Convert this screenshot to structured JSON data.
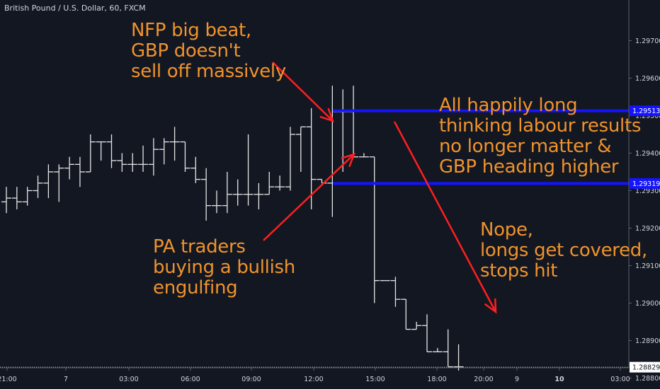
{
  "header": {
    "symbol_title": "British Pound / U.S. Dollar, 60, FXCM"
  },
  "colors": {
    "background": "#131722",
    "bars": "#e6e6e6",
    "levels": "#1414ff",
    "arrows": "#ff1f1f",
    "annotations": "#f0932b",
    "axis_text": "#d1d4dc",
    "axis_line": "#5d606b"
  },
  "annotations": {
    "nfp": "NFP big beat,\nGBP doesn't\nsell off massively",
    "pa": "PA traders\nbuying a bullish\nengulfing",
    "long": "All happily long\nthinking labour results\nno longer matter &\nGBP heading higher",
    "nope": "Nope,\nlongs get covered,\nstops hit"
  },
  "chart_data": {
    "type": "ohlc",
    "symbol": "British Pound / U.S. Dollar",
    "timeframe": "60",
    "source": "FXCM",
    "y_axis": {
      "side": "right",
      "range": [
        1.2876,
        1.2972
      ],
      "ticks": [
        1.297,
        1.296,
        1.295,
        1.294,
        1.293,
        1.292,
        1.291,
        1.29,
        1.289,
        1.288
      ],
      "tick_labels": [
        "1.29700",
        "1.29600",
        "1.29500",
        "1.29400",
        "1.29300",
        "1.29200",
        "1.29100",
        "1.29000",
        "1.28900",
        "1.28800"
      ]
    },
    "x_axis": {
      "labels": [
        "21:00",
        "7",
        "03:00",
        "06:00",
        "09:00",
        "12:00",
        "15:00",
        "18:00",
        "20:00",
        "9",
        "10",
        "03:00"
      ],
      "bold_labels": [
        "10"
      ]
    },
    "levels": [
      {
        "value": 1.29513,
        "label": "1.29513"
      },
      {
        "value": 1.29319,
        "label": "1.29319"
      }
    ],
    "last_price": {
      "value": 1.28829,
      "label": "1.28829"
    },
    "bars": [
      {
        "o": 1.2927,
        "h": 1.2931,
        "l": 1.2924,
        "c": 1.2928
      },
      {
        "o": 1.2928,
        "h": 1.2931,
        "l": 1.2925,
        "c": 1.2927
      },
      {
        "o": 1.2927,
        "h": 1.2931,
        "l": 1.2926,
        "c": 1.293
      },
      {
        "o": 1.293,
        "h": 1.2934,
        "l": 1.2928,
        "c": 1.2932
      },
      {
        "o": 1.2932,
        "h": 1.2937,
        "l": 1.2928,
        "c": 1.2935
      },
      {
        "o": 1.2935,
        "h": 1.2937,
        "l": 1.2927,
        "c": 1.2936
      },
      {
        "o": 1.2936,
        "h": 1.2939,
        "l": 1.2933,
        "c": 1.2937
      },
      {
        "o": 1.2937,
        "h": 1.2939,
        "l": 1.2931,
        "c": 1.2935
      },
      {
        "o": 1.2935,
        "h": 1.2945,
        "l": 1.2935,
        "c": 1.2943
      },
      {
        "o": 1.2943,
        "h": 1.2943,
        "l": 1.2938,
        "c": 1.2943
      },
      {
        "o": 1.2943,
        "h": 1.2945,
        "l": 1.2936,
        "c": 1.2938
      },
      {
        "o": 1.2938,
        "h": 1.294,
        "l": 1.2935,
        "c": 1.2937
      },
      {
        "o": 1.2937,
        "h": 1.294,
        "l": 1.2935,
        "c": 1.2937
      },
      {
        "o": 1.2937,
        "h": 1.2942,
        "l": 1.2935,
        "c": 1.2937
      },
      {
        "o": 1.2937,
        "h": 1.2944,
        "l": 1.2934,
        "c": 1.2941
      },
      {
        "o": 1.2941,
        "h": 1.2944,
        "l": 1.2937,
        "c": 1.2943
      },
      {
        "o": 1.2943,
        "h": 1.2947,
        "l": 1.2938,
        "c": 1.2943
      },
      {
        "o": 1.2943,
        "h": 1.2943,
        "l": 1.2935,
        "c": 1.2936
      },
      {
        "o": 1.2936,
        "h": 1.2939,
        "l": 1.2932,
        "c": 1.2933
      },
      {
        "o": 1.2933,
        "h": 1.2936,
        "l": 1.2922,
        "c": 1.2926
      },
      {
        "o": 1.2926,
        "h": 1.293,
        "l": 1.2924,
        "c": 1.2926
      },
      {
        "o": 1.2926,
        "h": 1.2935,
        "l": 1.2924,
        "c": 1.2929
      },
      {
        "o": 1.2929,
        "h": 1.2933,
        "l": 1.2926,
        "c": 1.2929
      },
      {
        "o": 1.2929,
        "h": 1.2945,
        "l": 1.2926,
        "c": 1.2929
      },
      {
        "o": 1.2929,
        "h": 1.2932,
        "l": 1.2925,
        "c": 1.2929
      },
      {
        "o": 1.2929,
        "h": 1.2935,
        "l": 1.2929,
        "c": 1.2931
      },
      {
        "o": 1.2931,
        "h": 1.2934,
        "l": 1.293,
        "c": 1.2931
      },
      {
        "o": 1.2931,
        "h": 1.2947,
        "l": 1.293,
        "c": 1.2945
      },
      {
        "o": 1.2945,
        "h": 1.2947,
        "l": 1.2935,
        "c": 1.2947
      },
      {
        "o": 1.2947,
        "h": 1.2952,
        "l": 1.2925,
        "c": 1.2933
      },
      {
        "o": 1.2933,
        "h": 1.2933,
        "l": 1.2932,
        "c": 1.2932
      },
      {
        "o": 1.2932,
        "h": 1.2958,
        "l": 1.2923,
        "c": 1.2951
      },
      {
        "o": 1.2951,
        "h": 1.2957,
        "l": 1.2935,
        "c": 1.2951
      },
      {
        "o": 1.2951,
        "h": 1.2958,
        "l": 1.2939,
        "c": 1.2939
      },
      {
        "o": 1.2939,
        "h": 1.294,
        "l": 1.2939,
        "c": 1.2939
      },
      {
        "o": 1.2939,
        "h": 1.2939,
        "l": 1.29,
        "c": 1.2906
      },
      {
        "o": 1.2906,
        "h": 1.2906,
        "l": 1.2906,
        "c": 1.2906
      },
      {
        "o": 1.2906,
        "h": 1.2907,
        "l": 1.2899,
        "c": 1.2901
      },
      {
        "o": 1.2901,
        "h": 1.2901,
        "l": 1.2893,
        "c": 1.2893
      },
      {
        "o": 1.2893,
        "h": 1.2895,
        "l": 1.2893,
        "c": 1.2894
      },
      {
        "o": 1.2894,
        "h": 1.2897,
        "l": 1.2887,
        "c": 1.2887
      },
      {
        "o": 1.2887,
        "h": 1.2888,
        "l": 1.2887,
        "c": 1.2887
      },
      {
        "o": 1.2887,
        "h": 1.2893,
        "l": 1.2883,
        "c": 1.2883
      },
      {
        "o": 1.2883,
        "h": 1.2889,
        "l": 1.2882,
        "c": 1.2883
      }
    ]
  }
}
